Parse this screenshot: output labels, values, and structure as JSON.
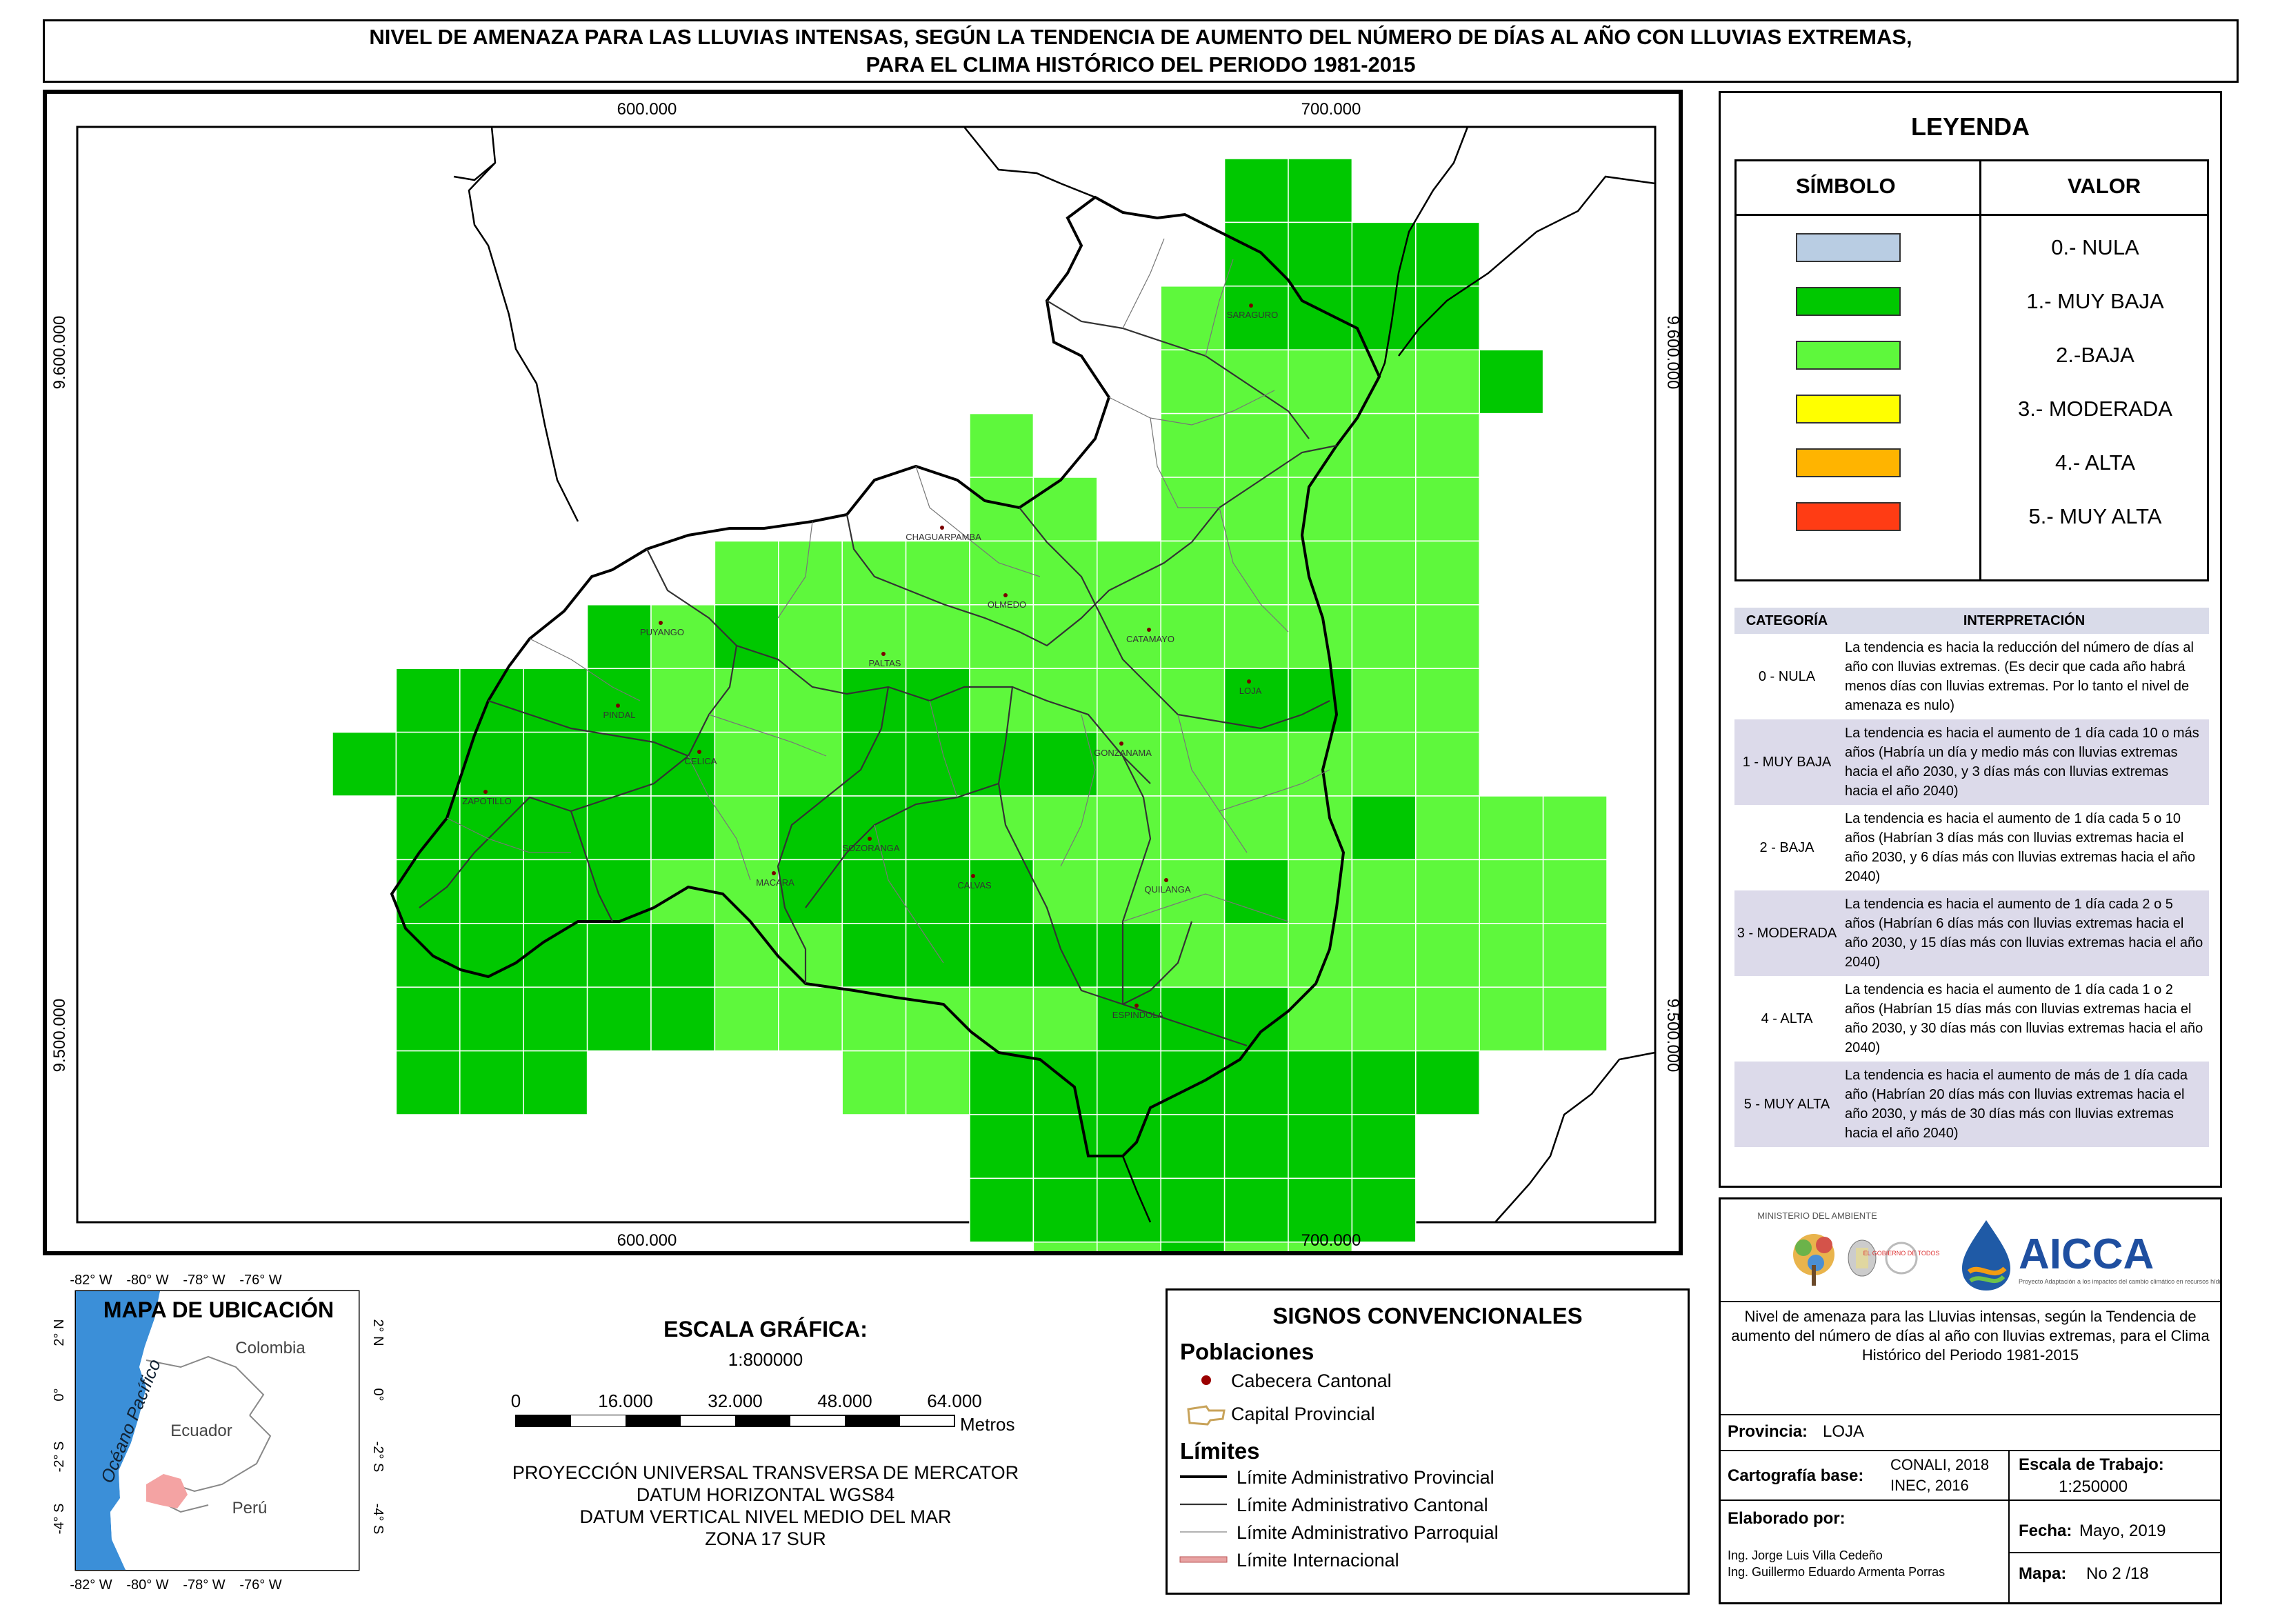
{
  "title": {
    "line1": "NIVEL DE AMENAZA PARA LAS LLUVIAS INTENSAS, SEGÚN LA TENDENCIA DE AUMENTO DEL NÚMERO DE DÍAS AL AÑO CON LLUVIAS EXTREMAS,",
    "line2": "PARA EL CLIMA HISTÓRICO DEL PERIODO 1981-2015"
  },
  "map": {
    "coords": {
      "top_left_x": "600.000",
      "top_right_x": "700.000",
      "bottom_left_x": "600.000",
      "bottom_right_x": "700.000",
      "left_upper_y": "9.600.000",
      "left_lower_y": "9.500.000",
      "right_upper_y": "9.600.000",
      "right_lower_y": "9.500.000"
    },
    "cantons": [
      "SARAGURO",
      "CHAGUARPAMBA",
      "OLMEDO",
      "PUYANGO",
      "PALTAS",
      "CATAMAYO",
      "LOJA",
      "PINDAL",
      "CELICA",
      "GONZANAMA",
      "ZAPOTILLO",
      "SOZORANGA",
      "MACARA",
      "CALVAS",
      "QUILANGA",
      "ESPINDOLA"
    ],
    "colors": {
      "muy_baja": "#00c800",
      "baja": "#5ef83c"
    }
  },
  "legend": {
    "title": "LEYENDA",
    "symbol_header": "SÍMBOLO",
    "value_header": "VALOR",
    "items": [
      {
        "label": "0.- NULA",
        "color": "#b9cde3"
      },
      {
        "label": "1.- MUY BAJA",
        "color": "#00c800"
      },
      {
        "label": "2.-BAJA",
        "color": "#5ef83c"
      },
      {
        "label": "3.- MODERADA",
        "color": "#ffff00"
      },
      {
        "label": "4.- ALTA",
        "color": "#ffb400"
      },
      {
        "label": "5.- MUY ALTA",
        "color": "#ff3c14"
      }
    ],
    "interp_header": {
      "cat": "CATEGORÍA",
      "txt": "INTERPRETACIÓN"
    },
    "interp": [
      {
        "cat": "0 - NULA",
        "txt": "La tendencia es hacia la reducción del número de días al año con lluvias extremas. (Es decir que cada año habrá menos días con lluvias extremas. Por lo tanto el nivel de amenaza es nulo)"
      },
      {
        "cat": "1 - MUY BAJA",
        "txt": "La tendencia es hacia el aumento de 1 día cada 10 o más años (Habría un día y medio más con lluvias extremas hacia el año 2030, y 3 días más con lluvias extremas hacia el año 2040)"
      },
      {
        "cat": "2 - BAJA",
        "txt": "La tendencia es hacia el aumento de 1 día cada 5 o 10 años (Habrían 3 días más con lluvias extremas hacia el año 2030, y 6 días más con lluvias extremas hacia el año 2040)"
      },
      {
        "cat": "3 - MODERADA",
        "txt": "La tendencia es hacia el aumento de 1 día cada 2 o 5 años (Habrían 6 días más con lluvias extremas hacia el año 2030, y 15 días más con lluvias extremas hacia el año 2040)"
      },
      {
        "cat": "4 - ALTA",
        "txt": "La tendencia es hacia el aumento de 1 día cada 1 o 2 años (Habrían 15 días más con lluvias extremas hacia el año 2030, y 30 días más con lluvias extremas hacia el año 2040)"
      },
      {
        "cat": "5 - MUY ALTA",
        "txt": "La tendencia es hacia el aumento de más de 1 día cada año (Habrían 20 días más con lluvias extremas hacia el año 2030, y más de 30 días más con lluvias extremas hacia el año 2040)"
      }
    ]
  },
  "location_map": {
    "title": "MAPA DE UBICACIÓN",
    "top_ticks": [
      "-82° W",
      "-80° W",
      "-78° W",
      "-76° W"
    ],
    "bottom_ticks": [
      "-82° W",
      "-80° W",
      "-78° W",
      "-76° W"
    ],
    "left_ticks": [
      "2° N",
      "0°",
      "-2° S",
      "-4° S"
    ],
    "right_ticks": [
      "2° N",
      "0°",
      "-2° S",
      "-4° S"
    ],
    "ocean": "Océano Pacífico",
    "colombia": "Colombia",
    "ecuador": "Ecuador",
    "peru": "Perú"
  },
  "scale": {
    "title": "ESCALA GRÁFICA:",
    "ratio": "1:800000",
    "ticks": [
      "0",
      "16.000",
      "32.000",
      "48.000",
      "64.000"
    ],
    "unit": "Metros",
    "projection": [
      "PROYECCIÓN UNIVERSAL TRANSVERSA DE MERCATOR",
      "DATUM HORIZONTAL WGS84",
      "DATUM VERTICAL NIVEL MEDIO DEL MAR",
      "ZONA 17 SUR"
    ]
  },
  "signos": {
    "title": "SIGNOS CONVENCIONALES",
    "poblaciones": "Poblaciones",
    "cabecera": "Cabecera Cantonal",
    "capital": "Capital Provincial",
    "limites": "Límites",
    "lim_prov": "Límite Administrativo Provincial",
    "lim_cant": "Límite Administrativo Cantonal",
    "lim_parr": "Límite Administrativo Parroquial",
    "lim_int": "Límite Internacional"
  },
  "info": {
    "ministerio": "MINISTERIO DEL AMBIENTE",
    "gobierno": "EL GOBIERNO DE TODOS",
    "aicca": "AICCA",
    "aicca_sub": "Proyecto Adaptación a los impactos del cambio climático en recursos hídricos en los Andes",
    "description": "Nivel de amenaza para las Lluvias intensas, según la Tendencia de aumento del número de días al año con lluvias extremas, para el Clima Histórico del Periodo 1981-2015",
    "provincia_label": "Provincia:",
    "provincia": "LOJA",
    "cartografia_label": "Cartografía base:",
    "cartografia1": "CONALI, 2018",
    "cartografia2": "INEC, 2016",
    "escala_label": "Escala de Trabajo:",
    "escala": "1:250000",
    "elaborado_label": "Elaborado por:",
    "autor1": "Ing. Jorge Luis Villa Cedeño",
    "autor2": "Ing. Guillermo Eduardo Armenta Porras",
    "fecha_label": "Fecha:",
    "fecha": "Mayo, 2019",
    "mapa_label": "Mapa:",
    "mapa": "No 2 /18"
  }
}
